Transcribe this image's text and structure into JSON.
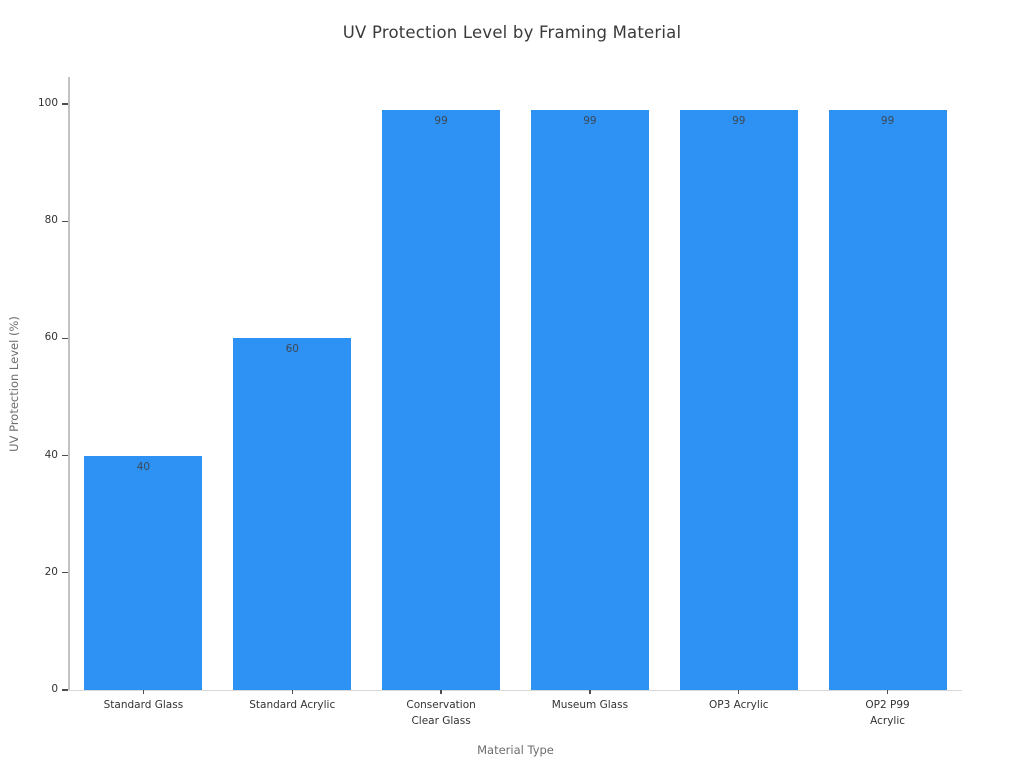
{
  "chart_data": {
    "type": "bar",
    "title": "UV Protection Level by Framing Material",
    "xlabel": "Material Type",
    "ylabel": "UV Protection Level (%)",
    "categories": [
      "Standard Glass",
      "Standard Acrylic",
      "Conservation\nClear Glass",
      "Museum Glass",
      "OP3 Acrylic",
      "OP2 P99\nAcrylic"
    ],
    "values": [
      40,
      60,
      99,
      99,
      99,
      99
    ],
    "value_labels": [
      40,
      60,
      99,
      99,
      99,
      99
    ],
    "value_label_position": "inside-top",
    "yticks": [
      0,
      20,
      40,
      60,
      80,
      100
    ],
    "ylim": [
      0,
      104.6
    ],
    "grid": false,
    "legend": false,
    "bar_color": "#2e92f4",
    "value_label_color": "#3c4854",
    "tick_label_color": "#333333",
    "axis_title_color": "#6d6d6d",
    "title_color": "#3a3a3a",
    "background_color": "#ffffff"
  }
}
